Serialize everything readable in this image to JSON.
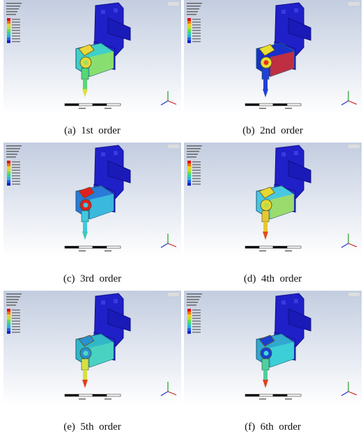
{
  "panels": [
    {
      "caption": "(a)  1st  order"
    },
    {
      "caption": "(b)  2nd  order"
    },
    {
      "caption": "(c)  3rd  order"
    },
    {
      "caption": "(d)  4th  order"
    },
    {
      "caption": "(e)  5th  order"
    },
    {
      "caption": "(f)  6th  order"
    }
  ]
}
